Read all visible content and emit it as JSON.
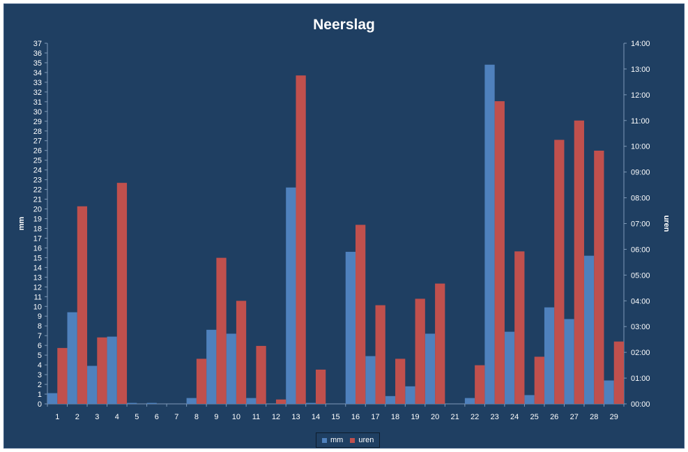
{
  "colors": {
    "background": "#1f3f62",
    "mm": "#4f81bd",
    "uren": "#c0504d",
    "text": "#ffffff"
  },
  "chart_data": {
    "type": "bar",
    "title": "Neerslag",
    "xlabel": "",
    "ylabel": "mm",
    "y2label": "uren",
    "ylim": [
      0,
      37
    ],
    "y2lim": [
      0,
      14
    ],
    "categories": [
      "1",
      "2",
      "3",
      "4",
      "5",
      "6",
      "7",
      "8",
      "9",
      "10",
      "11",
      "12",
      "13",
      "14",
      "15",
      "16",
      "17",
      "18",
      "19",
      "20",
      "21",
      "22",
      "23",
      "24",
      "25",
      "26",
      "27",
      "28",
      "29"
    ],
    "y_ticks": [
      "0",
      "1",
      "2",
      "3",
      "4",
      "5",
      "6",
      "7",
      "8",
      "9",
      "10",
      "11",
      "12",
      "13",
      "14",
      "15",
      "16",
      "17",
      "18",
      "19",
      "20",
      "21",
      "22",
      "23",
      "24",
      "25",
      "26",
      "27",
      "28",
      "29",
      "30",
      "31",
      "32",
      "33",
      "34",
      "35",
      "36",
      "37"
    ],
    "y2_ticks": [
      "00:00",
      "01:00",
      "02:00",
      "03:00",
      "04:00",
      "05:00",
      "06:00",
      "07:00",
      "08:00",
      "09:00",
      "10:00",
      "11:00",
      "12:00",
      "13:00",
      "14:00"
    ],
    "series": [
      {
        "name": "mm",
        "axis": "left",
        "values": [
          1.1,
          9.4,
          3.9,
          6.9,
          0.1,
          0.1,
          0,
          0.6,
          7.6,
          7.2,
          0.6,
          0,
          22.2,
          0.1,
          0,
          15.6,
          4.9,
          0.8,
          1.8,
          7.2,
          0,
          0.6,
          34.8,
          7.4,
          0.9,
          9.9,
          8.7,
          15.2,
          2.4
        ]
      },
      {
        "name": "uren",
        "axis": "right",
        "values": [
          2.17,
          7.67,
          2.58,
          8.58,
          0,
          0,
          0,
          1.75,
          5.67,
          4.0,
          2.25,
          0.17,
          12.75,
          1.33,
          0,
          6.95,
          3.83,
          1.75,
          4.08,
          4.67,
          0,
          1.5,
          11.75,
          5.92,
          1.83,
          10.25,
          11.0,
          9.83,
          2.42
        ]
      }
    ],
    "legend_position": "bottom",
    "grid": false
  }
}
